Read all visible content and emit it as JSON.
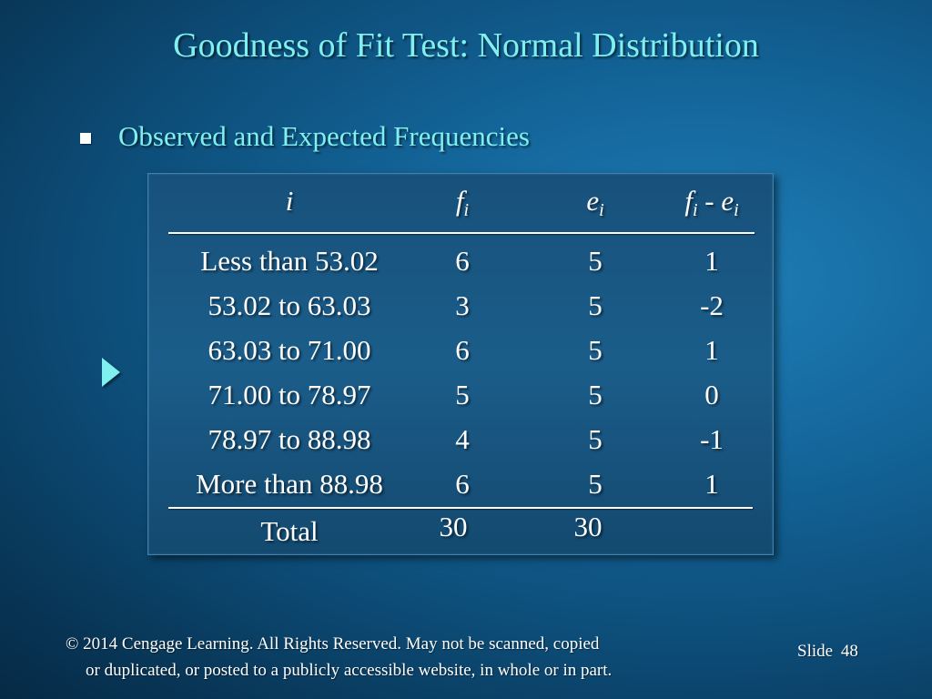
{
  "title": "Goodness of Fit Test:  Normal Distribution",
  "bullet": "Observed and Expected Frequencies",
  "table": {
    "headers": {
      "i": "i",
      "f": "f",
      "f_sub": "i",
      "e": "e",
      "e_sub": "i",
      "diff_f": "f",
      "diff_f_sub": "i",
      "diff_op": " - ",
      "diff_e": "e",
      "diff_e_sub": "i"
    },
    "rows": [
      {
        "interval": "Less than 53.02",
        "f": "6",
        "e": "5",
        "d": "1"
      },
      {
        "interval": "53.02 to 63.03",
        "f": "3",
        "e": "5",
        "d": "-2"
      },
      {
        "interval": "63.03 to 71.00",
        "f": "6",
        "e": "5",
        "d": "1"
      },
      {
        "interval": "71.00 to 78.97",
        "f": "5",
        "e": "5",
        "d": "0"
      },
      {
        "interval": "78.97 to 88.98",
        "f": "4",
        "e": "5",
        "d": "-1"
      },
      {
        "interval": "More than 88.98",
        "f": "6",
        "e": "5",
        "d": "1"
      }
    ],
    "total": {
      "label": "Total",
      "f": "30",
      "e": "30"
    }
  },
  "footer": {
    "line1": "© 2014  Cengage Learning.  All Rights Reserved.  May not be scanned, copied",
    "line2": "or duplicated, or posted to a publicly accessible website, in whole or in part."
  },
  "slide": {
    "label": "Slide",
    "number": "48"
  },
  "colors": {
    "title": "#7ff0ef",
    "text": "#ffffff",
    "background": "#0d4e7a"
  }
}
